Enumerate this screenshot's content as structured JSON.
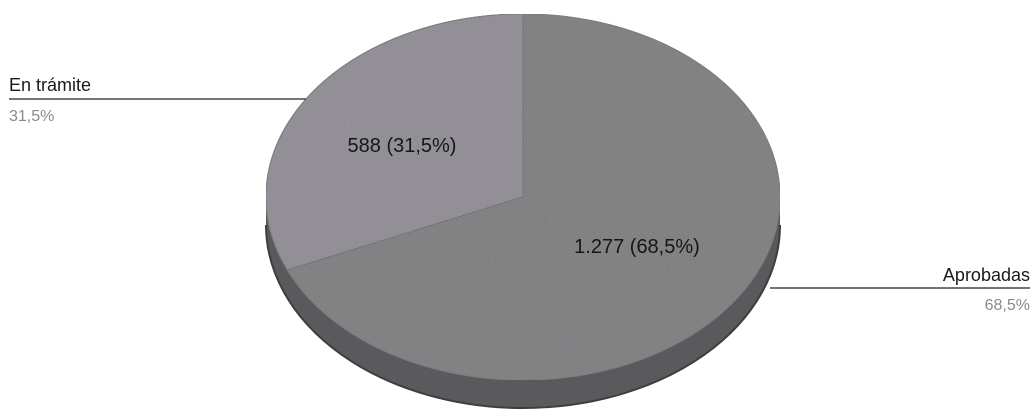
{
  "chart_data": {
    "type": "pie",
    "is_3d": true,
    "categories": [
      "En trámite",
      "Aprobadas"
    ],
    "values": [
      588,
      1277
    ],
    "percent_labels": [
      "31,5%",
      "68,5%"
    ],
    "slice_labels": [
      "588 (31,5%)",
      "1.277 (68,5%)"
    ],
    "colors": [
      "#8e8a93",
      "#7b7a7d"
    ],
    "side_color": "#5a595c",
    "legend": "callouts",
    "title": ""
  },
  "callouts": {
    "en_tramite": {
      "name": "En trámite",
      "pct": "31,5%"
    },
    "aprobadas": {
      "name": "Aprobadas",
      "pct": "68,5%"
    }
  }
}
